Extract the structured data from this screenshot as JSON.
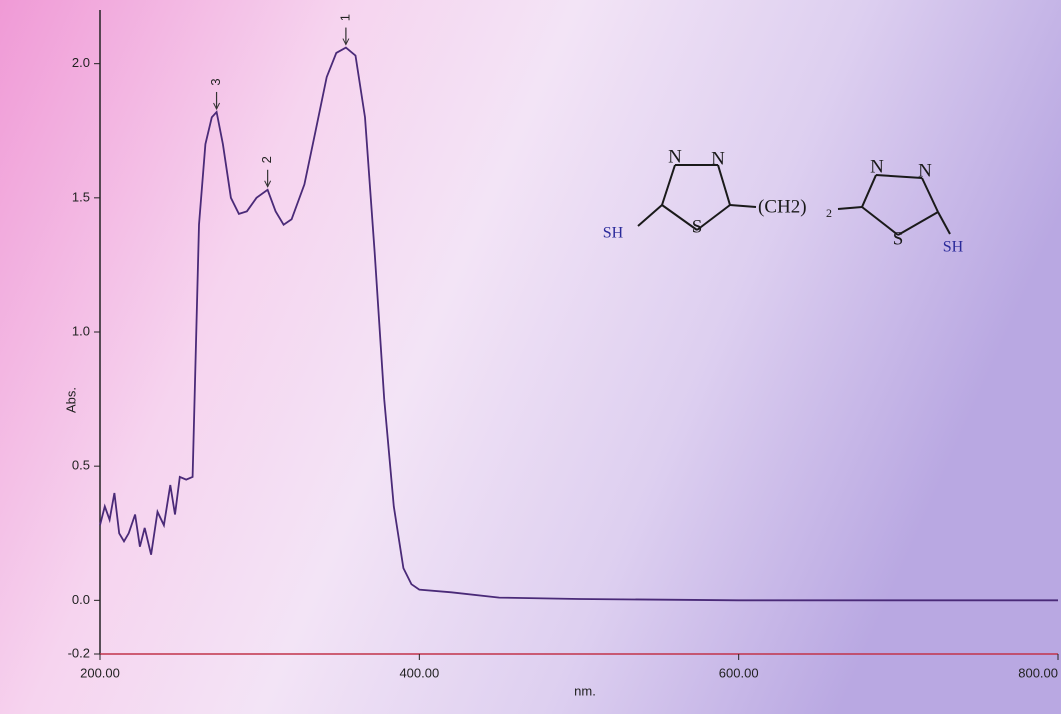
{
  "chart_data": {
    "type": "line",
    "xlabel": "nm.",
    "ylabel": "Abs.",
    "x": [
      200,
      203,
      206,
      209,
      212,
      215,
      218,
      222,
      225,
      228,
      232,
      236,
      240,
      244,
      247,
      250,
      254,
      258,
      262,
      266,
      270,
      273,
      277,
      282,
      287,
      292,
      298,
      305,
      310,
      315,
      320,
      328,
      335,
      342,
      348,
      354,
      360,
      366,
      372,
      378,
      384,
      390,
      395,
      400,
      420,
      450,
      500,
      600,
      700,
      800
    ],
    "series": [
      {
        "color": "#4a2a78",
        "values": [
          0.28,
          0.35,
          0.3,
          0.4,
          0.25,
          0.22,
          0.25,
          0.32,
          0.2,
          0.27,
          0.17,
          0.33,
          0.28,
          0.43,
          0.32,
          0.46,
          0.45,
          0.46,
          1.4,
          1.7,
          1.8,
          1.82,
          1.7,
          1.5,
          1.44,
          1.45,
          1.5,
          1.53,
          1.45,
          1.4,
          1.42,
          1.55,
          1.75,
          1.95,
          2.04,
          2.06,
          2.03,
          1.8,
          1.3,
          0.75,
          0.35,
          0.12,
          0.06,
          0.04,
          0.03,
          0.01,
          0.005,
          0.0,
          0.0,
          0.0
        ]
      }
    ],
    "xlim": [
      200,
      800
    ],
    "ylim": [
      -0.2,
      2.2
    ],
    "xticks": [
      {
        "value": 200,
        "label": "200.00"
      },
      {
        "value": 400,
        "label": "400.00"
      },
      {
        "value": 600,
        "label": "600.00"
      },
      {
        "value": 800,
        "label": "800.00"
      }
    ],
    "yticks": [
      {
        "value": 2,
        "label": "2.0"
      },
      {
        "value": 1.5,
        "label": "1.5"
      },
      {
        "value": 1,
        "label": "1.0"
      },
      {
        "value": 0.5,
        "label": "0.5"
      },
      {
        "value": 0,
        "label": "0.0"
      },
      -0.2
    ],
    "peaks": [
      {
        "label": "1",
        "x": 354,
        "y": 2.06
      },
      {
        "label": "2",
        "x": 305,
        "y": 1.53
      },
      {
        "label": "3",
        "x": 273,
        "y": 1.82
      }
    ]
  },
  "structure": {
    "left_ring": {
      "n1": "N",
      "n2": "N",
      "s": "S",
      "sh": "SH"
    },
    "linker": "(CH2)",
    "linker_subscript": "2",
    "right_ring": {
      "n1": "N",
      "n2": "N",
      "s": "S",
      "sh": "SH"
    }
  }
}
